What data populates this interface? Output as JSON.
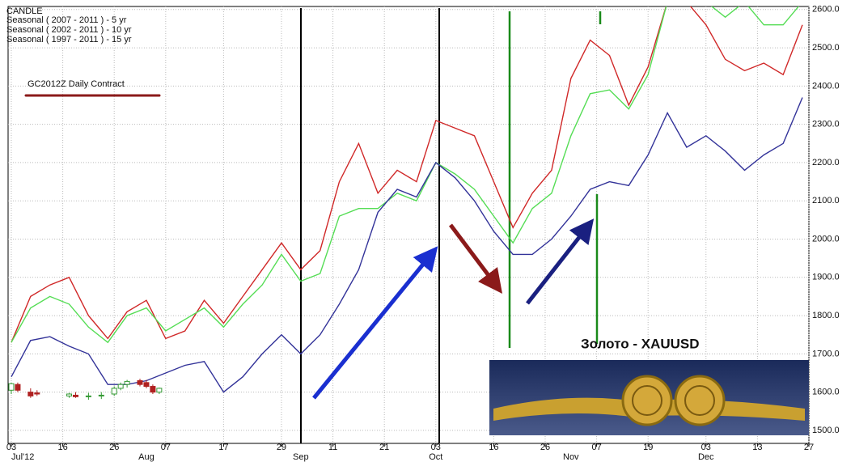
{
  "chart_data": {
    "type": "line",
    "legend_title": "CANDLE",
    "contract_label": "GC2012Z Daily Contract",
    "image_caption": "Золото -   XAUUSD",
    "x": [
      0,
      3,
      6,
      9,
      12,
      15,
      18,
      21,
      24,
      27,
      30,
      33,
      36,
      39,
      42,
      45,
      48,
      51,
      54,
      57,
      60,
      63,
      66,
      69,
      72,
      75,
      78,
      81,
      84,
      87,
      90,
      93,
      96,
      99,
      102,
      105,
      108,
      111,
      114,
      117,
      120,
      123
    ],
    "series": [
      {
        "name": "Seasonal ( 2007 - 2011 ) - 5 yr",
        "color": "#d02828",
        "values": [
          1730,
          1850,
          1880,
          1900,
          1800,
          1740,
          1810,
          1840,
          1740,
          1760,
          1840,
          1780,
          1850,
          1920,
          1990,
          1920,
          1970,
          2150,
          2250,
          2120,
          2180,
          2150,
          2310,
          2290,
          2270,
          2150,
          2030,
          2120,
          2180,
          2420,
          2520,
          2480,
          2350,
          2450,
          2620,
          2620,
          2560,
          2470,
          2440,
          2460,
          2430,
          2560
        ]
      },
      {
        "name": "Seasonal ( 2002 - 2011 ) - 10 yr",
        "color": "#55dd55",
        "values": [
          1730,
          1820,
          1850,
          1830,
          1770,
          1730,
          1800,
          1820,
          1760,
          1790,
          1820,
          1770,
          1830,
          1880,
          1960,
          1890,
          1910,
          2060,
          2080,
          2080,
          2120,
          2100,
          2200,
          2170,
          2130,
          2060,
          1990,
          2080,
          2120,
          2270,
          2380,
          2390,
          2340,
          2430,
          2620,
          2620,
          2620,
          2580,
          2620,
          2560,
          2560,
          2620
        ]
      },
      {
        "name": "Seasonal ( 1997 - 2011 ) - 15 yr",
        "color": "#333399",
        "values": [
          1640,
          1735,
          1745,
          1720,
          1700,
          1620,
          1620,
          1630,
          1650,
          1670,
          1680,
          1600,
          1640,
          1700,
          1750,
          1700,
          1750,
          1830,
          1920,
          2070,
          2130,
          2110,
          2200,
          2160,
          2100,
          2020,
          1960,
          1960,
          2000,
          2060,
          2130,
          2150,
          2140,
          2220,
          2330,
          2240,
          2270,
          2230,
          2180,
          2220,
          2250,
          2370
        ]
      }
    ],
    "candles": {
      "name": "CANDLE",
      "up_color": "#339933",
      "down_color": "#b02020",
      "x": [
        0,
        1,
        3,
        4,
        9,
        10,
        12,
        14,
        16,
        17,
        18,
        20,
        21,
        22,
        23
      ],
      "open": [
        1605,
        1620,
        1600,
        1598,
        1590,
        1592,
        1588,
        1590,
        1595,
        1610,
        1620,
        1630,
        1625,
        1615,
        1600
      ],
      "high": [
        1625,
        1625,
        1610,
        1605,
        1598,
        1600,
        1598,
        1600,
        1615,
        1625,
        1632,
        1635,
        1632,
        1620,
        1612
      ],
      "low": [
        1595,
        1600,
        1585,
        1590,
        1585,
        1585,
        1580,
        1582,
        1590,
        1605,
        1612,
        1615,
        1610,
        1595,
        1595
      ],
      "close": [
        1622,
        1605,
        1590,
        1595,
        1595,
        1588,
        1590,
        1592,
        1610,
        1620,
        1628,
        1620,
        1615,
        1600,
        1610
      ]
    },
    "xlim": [
      -0.5,
      124
    ],
    "ylim": [
      1466,
      2608
    ],
    "xticks": [
      {
        "value": 0,
        "label": "03"
      },
      {
        "value": 8,
        "label": "16"
      },
      {
        "value": 16,
        "label": "26"
      },
      {
        "value": 24,
        "label": "07"
      },
      {
        "value": 33,
        "label": "17"
      },
      {
        "value": 42,
        "label": "29"
      },
      {
        "value": 50,
        "label": "11"
      },
      {
        "value": 58,
        "label": "21"
      },
      {
        "value": 66,
        "label": "03"
      },
      {
        "value": 75,
        "label": "16"
      },
      {
        "value": 83,
        "label": "26"
      },
      {
        "value": 91,
        "label": "07"
      },
      {
        "value": 99,
        "label": "19"
      },
      {
        "value": 108,
        "label": "03"
      },
      {
        "value": 116,
        "label": "13"
      },
      {
        "value": 124,
        "label": "27"
      }
    ],
    "month_labels": [
      {
        "value": 0,
        "label": "Jul'12"
      },
      {
        "value": 21,
        "label": "Aug"
      },
      {
        "value": 45,
        "label": "Sep"
      },
      {
        "value": 66,
        "label": "Oct"
      },
      {
        "value": 87,
        "label": "Nov"
      },
      {
        "value": 108,
        "label": "Dec"
      }
    ],
    "yticks": [
      {
        "value": 1500,
        "label": "1500.0"
      },
      {
        "value": 1600,
        "label": "1600.0"
      },
      {
        "value": 1700,
        "label": "1700.0"
      },
      {
        "value": 1800,
        "label": "1800.0"
      },
      {
        "value": 1900,
        "label": "1900.0"
      },
      {
        "value": 2000,
        "label": "2000.0"
      },
      {
        "value": 2100,
        "label": "2100.0"
      },
      {
        "value": 2200,
        "label": "2200.0"
      },
      {
        "value": 2300,
        "label": "2300.0"
      },
      {
        "value": 2400,
        "label": "2400.0"
      },
      {
        "value": 2500,
        "label": "2500.0"
      },
      {
        "value": 2600,
        "label": "2600.0"
      }
    ],
    "grid": true
  }
}
